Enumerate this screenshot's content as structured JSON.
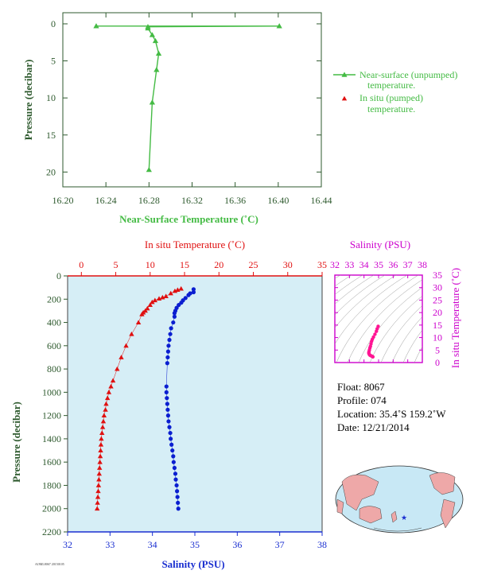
{
  "colors": {
    "green": "#44bb44",
    "red": "#e01010",
    "blue": "#0a1ed0",
    "dark_green": "#2e5a2e",
    "magenta": "#cc00cc",
    "light_blue": "#d6eef6",
    "axis_blue": "#1a2fd0"
  },
  "chart_data": [
    {
      "id": "near_surface",
      "type": "line",
      "xlabel": "Near-Surface Temperature (˚C)",
      "ylabel": "Pressure (decibar)",
      "xlim": [
        16.2,
        16.44
      ],
      "ylim": [
        22,
        -1.5
      ],
      "xticks": [
        "16.20",
        "16.24",
        "16.28",
        "16.32",
        "16.36",
        "16.40",
        "16.44"
      ],
      "yticks": [
        "0",
        "5",
        "10",
        "15",
        "20"
      ],
      "legend": [
        {
          "label_line1": "Near-surface (unpumped)",
          "label_line2": "temperature.",
          "marker": "triangle-line"
        },
        {
          "label_line1": "In situ (pumped)",
          "label_line2": "temperature.",
          "marker": "triangle"
        }
      ],
      "series": [
        {
          "name": "Near-surface (unpumped)",
          "points": [
            [
              16.231,
              0.3
            ],
            [
              16.401,
              0.3
            ],
            [
              16.279,
              0.4
            ],
            [
              16.279,
              0.6
            ],
            [
              16.283,
              1.5
            ],
            [
              16.286,
              2.3
            ],
            [
              16.289,
              4.0
            ],
            [
              16.287,
              6.2
            ],
            [
              16.283,
              10.6
            ],
            [
              16.28,
              19.7
            ]
          ]
        }
      ]
    },
    {
      "id": "profile",
      "type": "scatter",
      "top_axis_label": "In situ Temperature (˚C)",
      "bottom_axis_label": "Salinity (PSU)",
      "ylabel": "Pressure (decibar)",
      "temp_lim": [
        -2,
        35
      ],
      "temp_ticks": [
        "0",
        "5",
        "10",
        "15",
        "20",
        "25",
        "30",
        "35"
      ],
      "sal_lim": [
        32,
        38
      ],
      "sal_ticks": [
        "32",
        "33",
        "34",
        "35",
        "36",
        "37",
        "38"
      ],
      "ylim": [
        0,
        2200
      ],
      "yticks": [
        "0",
        "200",
        "400",
        "600",
        "800",
        "1000",
        "1200",
        "1400",
        "1600",
        "1800",
        "2000",
        "2200"
      ],
      "temperature": [
        [
          14.5,
          110
        ],
        [
          14,
          120
        ],
        [
          13.6,
          130
        ],
        [
          13,
          150
        ],
        [
          12.3,
          175
        ],
        [
          11.8,
          185
        ],
        [
          11.3,
          195
        ],
        [
          10.7,
          210
        ],
        [
          10.3,
          225
        ],
        [
          10,
          250
        ],
        [
          9.6,
          280
        ],
        [
          9.3,
          300
        ],
        [
          9.0,
          315
        ],
        [
          8.8,
          330
        ],
        [
          8.3,
          400
        ],
        [
          7.3,
          500
        ],
        [
          6.5,
          600
        ],
        [
          5.8,
          700
        ],
        [
          5.2,
          800
        ],
        [
          4.6,
          900
        ],
        [
          4.3,
          950
        ],
        [
          4.0,
          1000
        ],
        [
          3.8,
          1050
        ],
        [
          3.6,
          1100
        ],
        [
          3.5,
          1150
        ],
        [
          3.3,
          1200
        ],
        [
          3.2,
          1250
        ],
        [
          3.1,
          1300
        ],
        [
          3.0,
          1350
        ],
        [
          2.9,
          1400
        ],
        [
          2.85,
          1450
        ],
        [
          2.8,
          1500
        ],
        [
          2.75,
          1550
        ],
        [
          2.7,
          1600
        ],
        [
          2.65,
          1650
        ],
        [
          2.6,
          1700
        ],
        [
          2.55,
          1750
        ],
        [
          2.5,
          1800
        ],
        [
          2.45,
          1850
        ],
        [
          2.4,
          1900
        ],
        [
          2.35,
          1950
        ],
        [
          2.3,
          2000
        ]
      ],
      "salinity": [
        [
          34.97,
          115
        ],
        [
          34.97,
          140
        ],
        [
          34.89,
          150
        ],
        [
          34.85,
          165
        ],
        [
          34.78,
          190
        ],
        [
          34.72,
          210
        ],
        [
          34.68,
          230
        ],
        [
          34.62,
          250
        ],
        [
          34.57,
          275
        ],
        [
          34.54,
          300
        ],
        [
          34.52,
          320
        ],
        [
          34.52,
          350
        ],
        [
          34.49,
          400
        ],
        [
          34.44,
          450
        ],
        [
          34.42,
          500
        ],
        [
          34.4,
          550
        ],
        [
          34.38,
          600
        ],
        [
          34.37,
          650
        ],
        [
          34.36,
          700
        ],
        [
          34.35,
          750
        ],
        [
          34.33,
          950
        ],
        [
          34.33,
          1000
        ],
        [
          34.34,
          1050
        ],
        [
          34.35,
          1100
        ],
        [
          34.36,
          1150
        ],
        [
          34.37,
          1200
        ],
        [
          34.38,
          1250
        ],
        [
          34.4,
          1300
        ],
        [
          34.42,
          1350
        ],
        [
          34.43,
          1400
        ],
        [
          34.45,
          1450
        ],
        [
          34.47,
          1500
        ],
        [
          34.49,
          1550
        ],
        [
          34.5,
          1600
        ],
        [
          34.52,
          1650
        ],
        [
          34.54,
          1700
        ],
        [
          34.55,
          1750
        ],
        [
          34.57,
          1800
        ],
        [
          34.58,
          1850
        ],
        [
          34.59,
          1900
        ],
        [
          34.6,
          1950
        ],
        [
          34.61,
          2000
        ]
      ]
    },
    {
      "id": "ts_diagram",
      "type": "scatter",
      "top_axis_label": "Salinity (PSU)",
      "right_axis_label": "In situ Temperature (˚C)",
      "xlim": [
        32,
        38
      ],
      "ylim": [
        0,
        35
      ],
      "xticks": [
        "32",
        "33",
        "34",
        "35",
        "36",
        "37",
        "38"
      ],
      "yticks": [
        "0",
        "5",
        "10",
        "15",
        "20",
        "25",
        "30",
        "35"
      ],
      "points": [
        [
          34.97,
          14.5
        ],
        [
          34.9,
          13.5
        ],
        [
          34.85,
          12.5
        ],
        [
          34.75,
          11.3
        ],
        [
          34.65,
          10.2
        ],
        [
          34.57,
          9.3
        ],
        [
          34.52,
          8.5
        ],
        [
          34.48,
          7.5
        ],
        [
          34.44,
          6.5
        ],
        [
          34.4,
          5.8
        ],
        [
          34.37,
          5.0
        ],
        [
          34.34,
          4.3
        ],
        [
          34.33,
          3.8
        ],
        [
          34.36,
          3.3
        ],
        [
          34.4,
          3.0
        ],
        [
          34.45,
          2.8
        ],
        [
          34.52,
          2.6
        ],
        [
          34.58,
          2.4
        ],
        [
          34.61,
          2.3
        ]
      ]
    }
  ],
  "info": {
    "float": "Float:  8067",
    "profile": "Profile:  074",
    "location": "Location:  35.4˚S  159.2˚W",
    "date": "Date:  12/21/2014"
  },
  "map": {
    "marker": "★"
  },
  "footer_code": "AOML8067 20150105"
}
